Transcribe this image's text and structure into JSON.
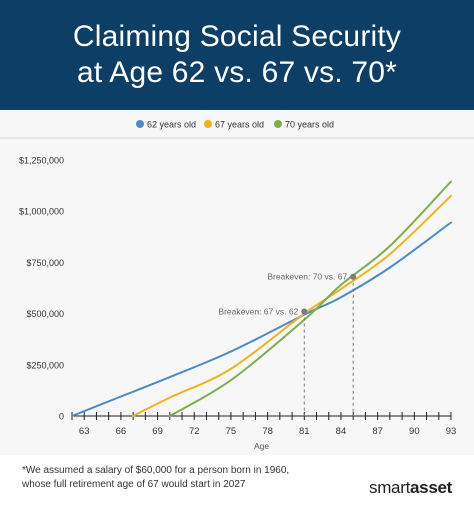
{
  "header": {
    "title_line1": "Claiming Social Security",
    "title_line2": "at Age 62 vs. 67 vs. 70*"
  },
  "footer": {
    "note_line1": "*We assumed a salary of $60,000 for a person born in 1960,",
    "note_line2": "whose full retirement age of 67 would start in 2027",
    "brand_part1": "smart",
    "brand_part2": "asset"
  },
  "chart_data": {
    "type": "line",
    "title": "Claiming Social Security at Age 62 vs. 67 vs. 70*",
    "xlabel": "Age",
    "ylabel": "",
    "xlim": [
      62,
      93
    ],
    "ylim": [
      0,
      1250000
    ],
    "grid": false,
    "legend_position": "top-center",
    "x_ticks": [
      63,
      66,
      69,
      72,
      75,
      78,
      81,
      84,
      87,
      90,
      93
    ],
    "y_ticks": [
      {
        "value": 0,
        "label": "0"
      },
      {
        "value": 250000,
        "label": "$250,000"
      },
      {
        "value": 500000,
        "label": "$500,000"
      },
      {
        "value": 750000,
        "label": "$750,000"
      },
      {
        "value": 1000000,
        "label": "$1,000,000"
      },
      {
        "value": 1250000,
        "label": "$1,250,000"
      }
    ],
    "series": [
      {
        "name": "62 years old",
        "color": "#4a8cc7",
        "x": [
          62,
          66,
          70,
          75,
          81,
          84,
          88,
          93
        ],
        "y": [
          0,
          95000,
          190000,
          315000,
          495000,
          580000,
          725000,
          945000
        ]
      },
      {
        "name": "67 years old",
        "color": "#f2b21c",
        "x": [
          67,
          70,
          75,
          81,
          84,
          88,
          93
        ],
        "y": [
          0,
          90000,
          230000,
          500000,
          620000,
          790000,
          1075000
        ]
      },
      {
        "name": "70 years old",
        "color": "#7cb04a",
        "x": [
          70,
          75,
          81,
          84,
          88,
          93
        ],
        "y": [
          0,
          175000,
          470000,
          640000,
          830000,
          1145000
        ]
      }
    ],
    "annotations": [
      {
        "label": "Breakeven: 67 vs. 62",
        "x": 81,
        "y": 510000
      },
      {
        "label": "Breakeven: 70 vs. 67",
        "x": 85,
        "y": 680000
      }
    ]
  }
}
